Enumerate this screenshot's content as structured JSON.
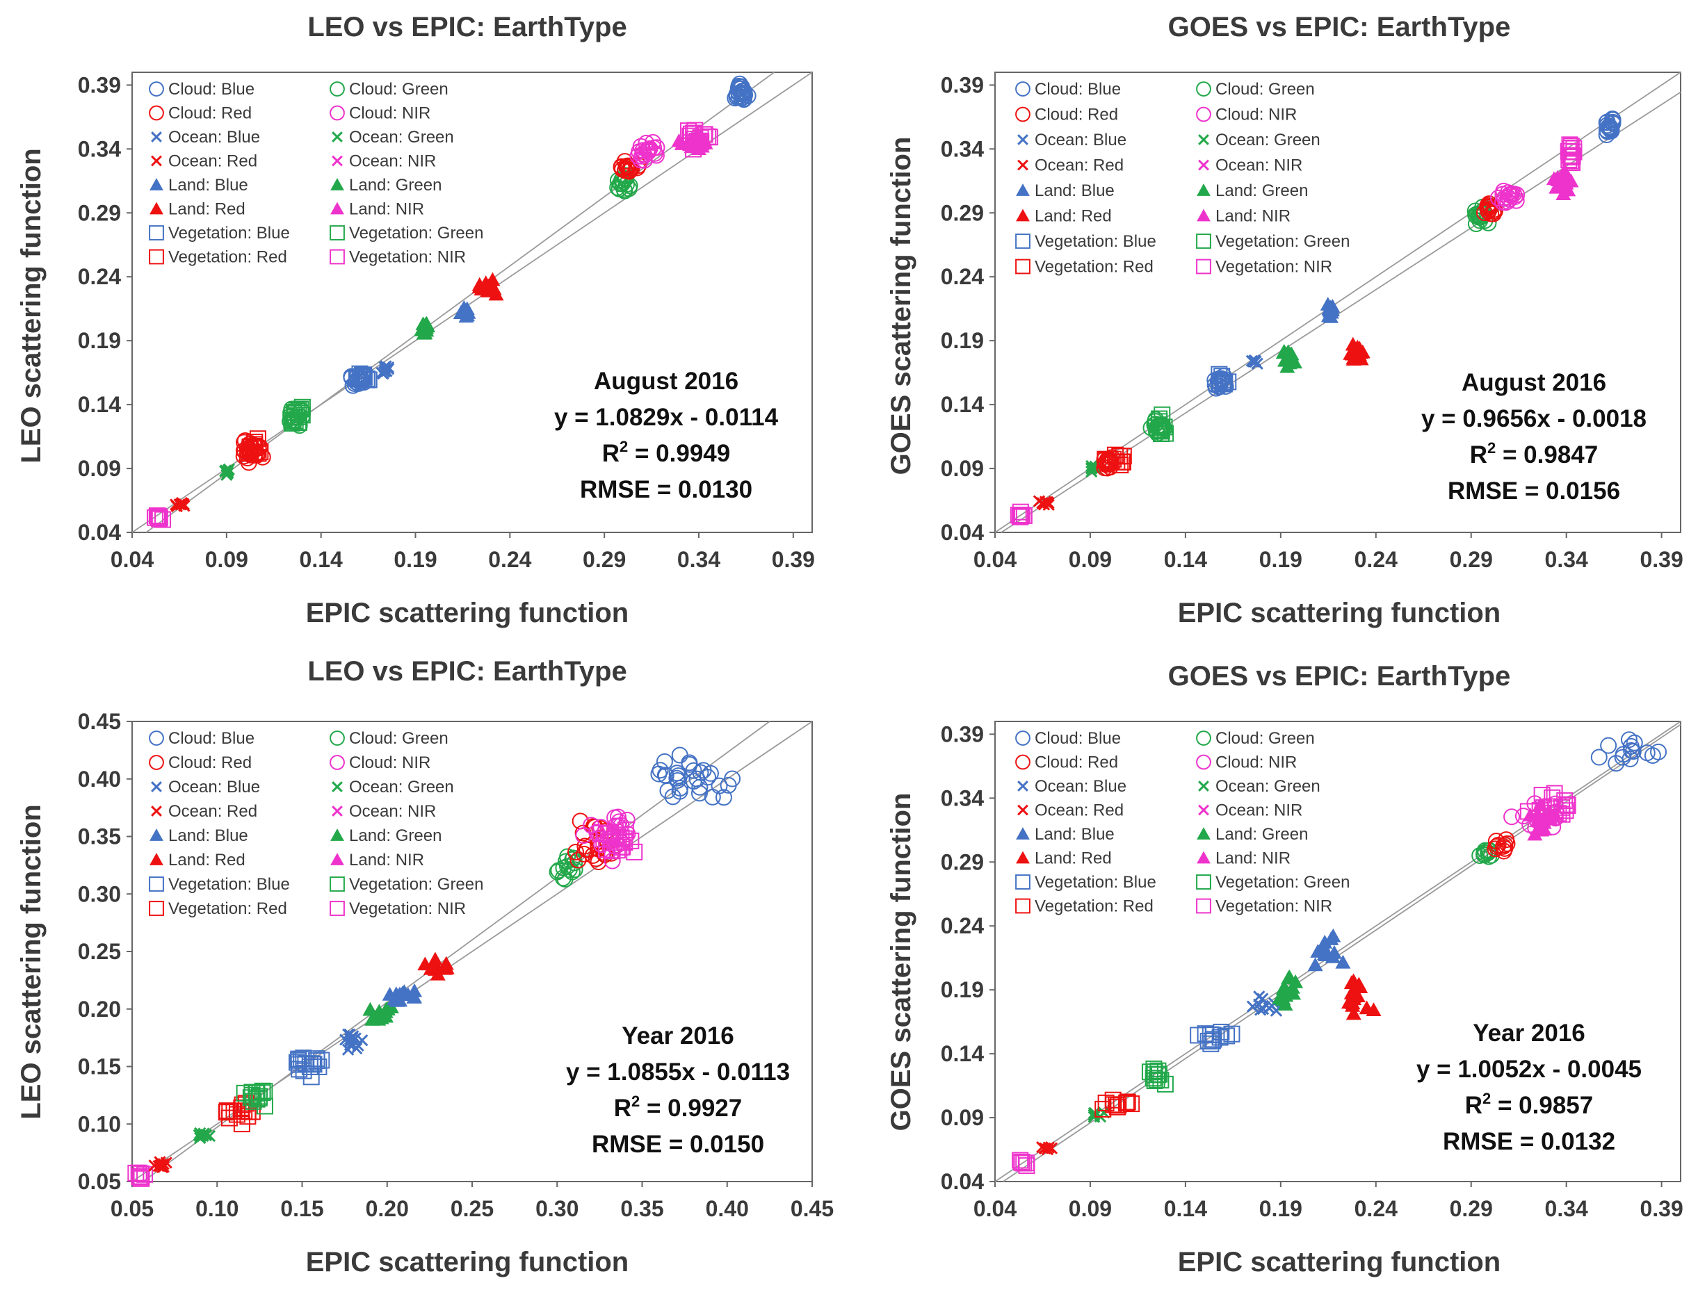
{
  "colors": {
    "blue": "#4472c4",
    "red": "#ee1111",
    "green": "#22a84a",
    "nir": "#ee33cc",
    "frame": "#666666",
    "line": "#9a9a9a"
  },
  "legend_items": [
    {
      "label": "Cloud: Blue",
      "marker": "circle",
      "color": "blue"
    },
    {
      "label": "Cloud: Green",
      "marker": "circle",
      "color": "green"
    },
    {
      "label": "Cloud: Red",
      "marker": "circle",
      "color": "red"
    },
    {
      "label": "Cloud: NIR",
      "marker": "circle",
      "color": "nir"
    },
    {
      "label": "Ocean: Blue",
      "marker": "x",
      "color": "blue"
    },
    {
      "label": "Ocean: Green",
      "marker": "x",
      "color": "green"
    },
    {
      "label": "Ocean: Red",
      "marker": "x",
      "color": "red"
    },
    {
      "label": "Ocean: NIR",
      "marker": "x",
      "color": "nir"
    },
    {
      "label": "Land: Blue",
      "marker": "triangle",
      "color": "blue"
    },
    {
      "label": "Land: Green",
      "marker": "triangle",
      "color": "green"
    },
    {
      "label": "Land: Red",
      "marker": "triangle",
      "color": "red"
    },
    {
      "label": "Land: NIR",
      "marker": "triangle",
      "color": "nir"
    },
    {
      "label": "Vegetation: Blue",
      "marker": "square",
      "color": "blue"
    },
    {
      "label": "Vegetation: Green",
      "marker": "square",
      "color": "green"
    },
    {
      "label": "Vegetation: Red",
      "marker": "square",
      "color": "red"
    },
    {
      "label": "Vegetation: NIR",
      "marker": "square",
      "color": "nir"
    }
  ],
  "chart_data": [
    {
      "type": "scatter",
      "title": "LEO vs EPIC: EarthType",
      "xlabel": "EPIC scattering function",
      "ylabel": "LEO scattering function",
      "xlim": [
        0.04,
        0.4
      ],
      "ylim": [
        0.04,
        0.4
      ],
      "ticks": [
        0.04,
        0.09,
        0.14,
        0.19,
        0.24,
        0.29,
        0.34,
        0.39
      ],
      "tick_labels": [
        "0.04",
        "0.09",
        "0.14",
        "0.19",
        "0.24",
        "0.29",
        "0.34",
        "0.39"
      ],
      "legend_position": "top-left",
      "fit": {
        "slope": 1.0829,
        "intercept": -0.0114
      },
      "stats": {
        "period": "August 2016",
        "equation": "y = 1.0829x - 0.0114",
        "r2_label": "R",
        "r2_value": " = 0.9949",
        "rmse": "RMSE = 0.0130"
      },
      "clusters": [
        {
          "type": "Vegetation",
          "band": "NIR",
          "x": 0.054,
          "y": 0.052,
          "dx": 0.002,
          "dy": 0.002,
          "n": 8
        },
        {
          "type": "Ocean",
          "band": "Red",
          "x": 0.066,
          "y": 0.062,
          "dx": 0.002,
          "dy": 0.002,
          "n": 10
        },
        {
          "type": "Ocean",
          "band": "Green",
          "x": 0.09,
          "y": 0.087,
          "dx": 0.002,
          "dy": 0.003,
          "n": 8
        },
        {
          "type": "Cloud",
          "band": "Red",
          "x": 0.103,
          "y": 0.104,
          "dx": 0.005,
          "dy": 0.007,
          "n": 26
        },
        {
          "type": "Vegetation",
          "band": "Red",
          "x": 0.105,
          "y": 0.108,
          "dx": 0.005,
          "dy": 0.007,
          "n": 14
        },
        {
          "type": "Cloud",
          "band": "Green",
          "x": 0.127,
          "y": 0.13,
          "dx": 0.004,
          "dy": 0.006,
          "n": 14
        },
        {
          "type": "Vegetation",
          "band": "Green",
          "x": 0.127,
          "y": 0.131,
          "dx": 0.004,
          "dy": 0.006,
          "n": 14
        },
        {
          "type": "Cloud",
          "band": "Blue",
          "x": 0.16,
          "y": 0.159,
          "dx": 0.004,
          "dy": 0.005,
          "n": 14
        },
        {
          "type": "Vegetation",
          "band": "Blue",
          "x": 0.162,
          "y": 0.16,
          "dx": 0.004,
          "dy": 0.005,
          "n": 12
        },
        {
          "type": "Ocean",
          "band": "Blue",
          "x": 0.174,
          "y": 0.166,
          "dx": 0.002,
          "dy": 0.004,
          "n": 10
        },
        {
          "type": "Land",
          "band": "Green",
          "x": 0.195,
          "y": 0.199,
          "dx": 0.003,
          "dy": 0.004,
          "n": 14
        },
        {
          "type": "Land",
          "band": "Blue",
          "x": 0.216,
          "y": 0.212,
          "dx": 0.002,
          "dy": 0.004,
          "n": 10
        },
        {
          "type": "Land",
          "band": "Red",
          "x": 0.227,
          "y": 0.232,
          "dx": 0.005,
          "dy": 0.005,
          "n": 18
        },
        {
          "type": "Cloud",
          "band": "Green",
          "x": 0.3,
          "y": 0.314,
          "dx": 0.004,
          "dy": 0.008,
          "n": 16
        },
        {
          "type": "Cloud",
          "band": "Red",
          "x": 0.303,
          "y": 0.325,
          "dx": 0.004,
          "dy": 0.005,
          "n": 18
        },
        {
          "type": "Cloud",
          "band": "NIR",
          "x": 0.312,
          "y": 0.338,
          "dx": 0.006,
          "dy": 0.007,
          "n": 20
        },
        {
          "type": "Land",
          "band": "NIR",
          "x": 0.338,
          "y": 0.345,
          "dx": 0.008,
          "dy": 0.005,
          "n": 20
        },
        {
          "type": "Vegetation",
          "band": "NIR",
          "x": 0.34,
          "y": 0.348,
          "dx": 0.006,
          "dy": 0.006,
          "n": 18
        },
        {
          "type": "Cloud",
          "band": "Blue",
          "x": 0.363,
          "y": 0.385,
          "dx": 0.003,
          "dy": 0.008,
          "n": 26
        }
      ]
    },
    {
      "type": "scatter",
      "title": "GOES vs EPIC: EarthType",
      "xlabel": "EPIC scattering function",
      "ylabel": "GOES scattering function",
      "xlim": [
        0.04,
        0.4
      ],
      "ylim": [
        0.04,
        0.4
      ],
      "ticks": [
        0.04,
        0.09,
        0.14,
        0.19,
        0.24,
        0.29,
        0.34,
        0.39
      ],
      "tick_labels": [
        "0.04",
        "0.09",
        "0.14",
        "0.19",
        "0.24",
        "0.29",
        "0.34",
        "0.39"
      ],
      "legend_position": "top-left",
      "fit": {
        "slope": 0.9656,
        "intercept": -0.0018
      },
      "stats": {
        "period": "August 2016",
        "equation": "y = 0.9656x - 0.0018",
        "r2_label": "R",
        "r2_value": " = 0.9847",
        "rmse": "RMSE = 0.0156"
      },
      "clusters": [
        {
          "type": "Vegetation",
          "band": "NIR",
          "x": 0.054,
          "y": 0.054,
          "dx": 0.002,
          "dy": 0.002,
          "n": 8
        },
        {
          "type": "Ocean",
          "band": "Red",
          "x": 0.066,
          "y": 0.064,
          "dx": 0.002,
          "dy": 0.002,
          "n": 8
        },
        {
          "type": "Ocean",
          "band": "Green",
          "x": 0.092,
          "y": 0.09,
          "dx": 0.002,
          "dy": 0.002,
          "n": 8
        },
        {
          "type": "Cloud",
          "band": "Red",
          "x": 0.1,
          "y": 0.095,
          "dx": 0.003,
          "dy": 0.004,
          "n": 16
        },
        {
          "type": "Vegetation",
          "band": "Red",
          "x": 0.103,
          "y": 0.096,
          "dx": 0.004,
          "dy": 0.004,
          "n": 12
        },
        {
          "type": "Cloud",
          "band": "Green",
          "x": 0.126,
          "y": 0.122,
          "dx": 0.003,
          "dy": 0.006,
          "n": 14
        },
        {
          "type": "Vegetation",
          "band": "Green",
          "x": 0.127,
          "y": 0.124,
          "dx": 0.003,
          "dy": 0.006,
          "n": 12
        },
        {
          "type": "Cloud",
          "band": "Blue",
          "x": 0.159,
          "y": 0.157,
          "dx": 0.003,
          "dy": 0.005,
          "n": 14
        },
        {
          "type": "Vegetation",
          "band": "Blue",
          "x": 0.159,
          "y": 0.158,
          "dx": 0.003,
          "dy": 0.005,
          "n": 10
        },
        {
          "type": "Ocean",
          "band": "Blue",
          "x": 0.176,
          "y": 0.174,
          "dx": 0.002,
          "dy": 0.002,
          "n": 8
        },
        {
          "type": "Land",
          "band": "Green",
          "x": 0.195,
          "y": 0.178,
          "dx": 0.003,
          "dy": 0.007,
          "n": 12
        },
        {
          "type": "Land",
          "band": "Blue",
          "x": 0.216,
          "y": 0.214,
          "dx": 0.002,
          "dy": 0.005,
          "n": 12
        },
        {
          "type": "Land",
          "band": "Red",
          "x": 0.229,
          "y": 0.18,
          "dx": 0.005,
          "dy": 0.006,
          "n": 18
        },
        {
          "type": "Cloud",
          "band": "Green",
          "x": 0.295,
          "y": 0.288,
          "dx": 0.003,
          "dy": 0.006,
          "n": 18
        },
        {
          "type": "Cloud",
          "band": "Red",
          "x": 0.3,
          "y": 0.293,
          "dx": 0.003,
          "dy": 0.006,
          "n": 16
        },
        {
          "type": "Cloud",
          "band": "NIR",
          "x": 0.31,
          "y": 0.302,
          "dx": 0.005,
          "dy": 0.005,
          "n": 18
        },
        {
          "type": "Land",
          "band": "NIR",
          "x": 0.338,
          "y": 0.313,
          "dx": 0.004,
          "dy": 0.008,
          "n": 14
        },
        {
          "type": "Vegetation",
          "band": "NIR",
          "x": 0.342,
          "y": 0.338,
          "dx": 0.002,
          "dy": 0.008,
          "n": 14
        },
        {
          "type": "Cloud",
          "band": "Blue",
          "x": 0.363,
          "y": 0.357,
          "dx": 0.002,
          "dy": 0.005,
          "n": 20
        }
      ]
    },
    {
      "type": "scatter",
      "title": "LEO vs EPIC: EarthType",
      "xlabel": "EPIC scattering function",
      "ylabel": "LEO scattering function",
      "xlim": [
        0.05,
        0.45
      ],
      "ylim": [
        0.05,
        0.45
      ],
      "ticks": [
        0.05,
        0.1,
        0.15,
        0.2,
        0.25,
        0.3,
        0.35,
        0.4,
        0.45
      ],
      "tick_labels": [
        "0.05",
        "0.10",
        "0.15",
        "0.20",
        "0.25",
        "0.30",
        "0.35",
        "0.40",
        "0.45"
      ],
      "legend_position": "top-left",
      "fit": {
        "slope": 1.0855,
        "intercept": -0.0113
      },
      "stats": {
        "period": "Year 2016",
        "equation": "y = 1.0855x - 0.0113",
        "r2_label": "R",
        "r2_value": " = 0.9927",
        "rmse": "RMSE = 0.0150"
      },
      "clusters": [
        {
          "type": "Vegetation",
          "band": "NIR",
          "x": 0.055,
          "y": 0.055,
          "dx": 0.003,
          "dy": 0.003,
          "n": 8
        },
        {
          "type": "Ocean",
          "band": "Red",
          "x": 0.067,
          "y": 0.064,
          "dx": 0.003,
          "dy": 0.003,
          "n": 10
        },
        {
          "type": "Ocean",
          "band": "Green",
          "x": 0.092,
          "y": 0.09,
          "dx": 0.003,
          "dy": 0.003,
          "n": 10
        },
        {
          "type": "Vegetation",
          "band": "Red",
          "x": 0.113,
          "y": 0.11,
          "dx": 0.01,
          "dy": 0.008,
          "n": 16
        },
        {
          "type": "Vegetation",
          "band": "Green",
          "x": 0.123,
          "y": 0.125,
          "dx": 0.006,
          "dy": 0.007,
          "n": 14
        },
        {
          "type": "Vegetation",
          "band": "Blue",
          "x": 0.153,
          "y": 0.152,
          "dx": 0.008,
          "dy": 0.008,
          "n": 18
        },
        {
          "type": "Ocean",
          "band": "Blue",
          "x": 0.178,
          "y": 0.172,
          "dx": 0.006,
          "dy": 0.006,
          "n": 16
        },
        {
          "type": "Land",
          "band": "Green",
          "x": 0.195,
          "y": 0.196,
          "dx": 0.006,
          "dy": 0.006,
          "n": 14
        },
        {
          "type": "Land",
          "band": "Blue",
          "x": 0.212,
          "y": 0.212,
          "dx": 0.008,
          "dy": 0.006,
          "n": 14
        },
        {
          "type": "Land",
          "band": "Red",
          "x": 0.228,
          "y": 0.237,
          "dx": 0.007,
          "dy": 0.007,
          "n": 14
        },
        {
          "type": "Cloud",
          "band": "Green",
          "x": 0.305,
          "y": 0.32,
          "dx": 0.006,
          "dy": 0.01,
          "n": 14
        },
        {
          "type": "Cloud",
          "band": "Red",
          "x": 0.322,
          "y": 0.345,
          "dx": 0.012,
          "dy": 0.015,
          "n": 22
        },
        {
          "type": "Cloud",
          "band": "NIR",
          "x": 0.33,
          "y": 0.35,
          "dx": 0.012,
          "dy": 0.015,
          "n": 20
        },
        {
          "type": "Vegetation",
          "band": "NIR",
          "x": 0.335,
          "y": 0.345,
          "dx": 0.012,
          "dy": 0.008,
          "n": 20
        },
        {
          "type": "Cloud",
          "band": "Blue",
          "x": 0.38,
          "y": 0.4,
          "dx": 0.02,
          "dy": 0.018,
          "n": 30
        }
      ]
    },
    {
      "type": "scatter",
      "title": "GOES vs EPIC: EarthType",
      "xlabel": "EPIC scattering function",
      "ylabel": "GOES scattering function",
      "xlim": [
        0.04,
        0.4
      ],
      "ylim": [
        0.04,
        0.4
      ],
      "ticks": [
        0.04,
        0.09,
        0.14,
        0.19,
        0.24,
        0.29,
        0.34,
        0.39
      ],
      "tick_labels": [
        "0.04",
        "0.09",
        "0.14",
        "0.19",
        "0.24",
        "0.29",
        "0.34",
        "0.39"
      ],
      "legend_position": "top-left",
      "fit": {
        "slope": 1.0052,
        "intercept": -0.0045
      },
      "stats": {
        "period": "Year 2016",
        "equation": "y = 1.0052x - 0.0045",
        "r2_label": "R",
        "r2_value": " = 0.9857",
        "rmse": "RMSE = 0.0132"
      },
      "clusters": [
        {
          "type": "Vegetation",
          "band": "NIR",
          "x": 0.055,
          "y": 0.055,
          "dx": 0.002,
          "dy": 0.002,
          "n": 6
        },
        {
          "type": "Ocean",
          "band": "Red",
          "x": 0.067,
          "y": 0.066,
          "dx": 0.002,
          "dy": 0.002,
          "n": 6
        },
        {
          "type": "Ocean",
          "band": "Green",
          "x": 0.094,
          "y": 0.093,
          "dx": 0.003,
          "dy": 0.003,
          "n": 8
        },
        {
          "type": "Vegetation",
          "band": "Red",
          "x": 0.107,
          "y": 0.1,
          "dx": 0.01,
          "dy": 0.006,
          "n": 10
        },
        {
          "type": "Vegetation",
          "band": "Green",
          "x": 0.125,
          "y": 0.122,
          "dx": 0.005,
          "dy": 0.008,
          "n": 12
        },
        {
          "type": "Vegetation",
          "band": "Blue",
          "x": 0.155,
          "y": 0.153,
          "dx": 0.008,
          "dy": 0.006,
          "n": 12
        },
        {
          "type": "Ocean",
          "band": "Blue",
          "x": 0.18,
          "y": 0.178,
          "dx": 0.006,
          "dy": 0.006,
          "n": 10
        },
        {
          "type": "Land",
          "band": "Green",
          "x": 0.194,
          "y": 0.19,
          "dx": 0.005,
          "dy": 0.012,
          "n": 12
        },
        {
          "type": "Land",
          "band": "Blue",
          "x": 0.215,
          "y": 0.22,
          "dx": 0.006,
          "dy": 0.015,
          "n": 12
        },
        {
          "type": "Land",
          "band": "Red",
          "x": 0.228,
          "y": 0.185,
          "dx": 0.008,
          "dy": 0.014,
          "n": 14
        },
        {
          "type": "Cloud",
          "band": "Green",
          "x": 0.298,
          "y": 0.296,
          "dx": 0.004,
          "dy": 0.005,
          "n": 10
        },
        {
          "type": "Cloud",
          "band": "Red",
          "x": 0.306,
          "y": 0.303,
          "dx": 0.005,
          "dy": 0.005,
          "n": 10
        },
        {
          "type": "Land",
          "band": "NIR",
          "x": 0.328,
          "y": 0.32,
          "dx": 0.008,
          "dy": 0.016,
          "n": 16
        },
        {
          "type": "Cloud",
          "band": "NIR",
          "x": 0.325,
          "y": 0.325,
          "dx": 0.012,
          "dy": 0.01,
          "n": 16
        },
        {
          "type": "Vegetation",
          "band": "NIR",
          "x": 0.335,
          "y": 0.335,
          "dx": 0.01,
          "dy": 0.012,
          "n": 14
        },
        {
          "type": "Cloud",
          "band": "Blue",
          "x": 0.375,
          "y": 0.377,
          "dx": 0.014,
          "dy": 0.012,
          "n": 14
        }
      ]
    }
  ]
}
